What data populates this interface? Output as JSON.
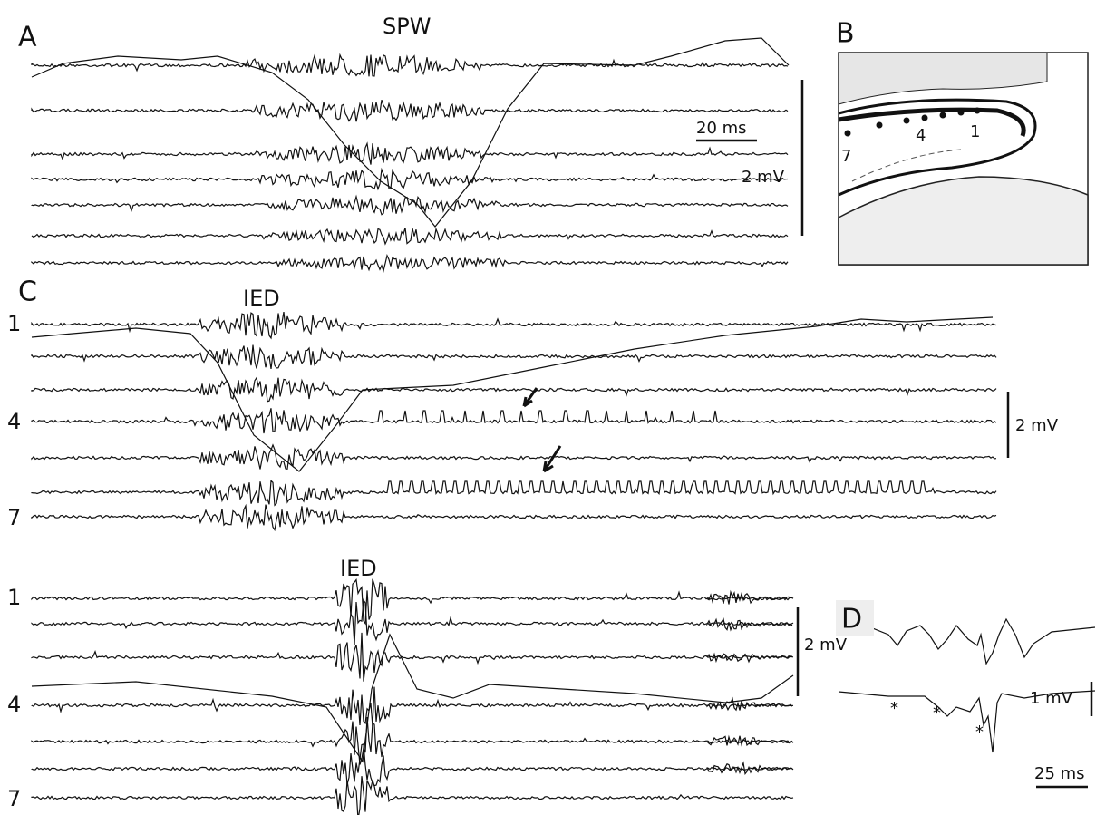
{
  "panels": [
    {
      "label": "A",
      "event": "SPW",
      "scale_time": "20 ms",
      "scale_voltage": "2 mV"
    },
    {
      "label": "B",
      "electrodes": [
        "7",
        "4",
        "1"
      ]
    },
    {
      "label": "C",
      "event": "IED",
      "channels": [
        "1",
        "4",
        "7"
      ],
      "scale_voltage": "2 mV"
    },
    {
      "event": "IED",
      "channels": [
        "1",
        "4",
        "7"
      ],
      "scale_voltage": "2 mV"
    },
    {
      "label": "D",
      "markers": [
        "*",
        "*",
        "*"
      ],
      "scale_voltage": "1 mV",
      "scale_time": "25 ms"
    }
  ]
}
